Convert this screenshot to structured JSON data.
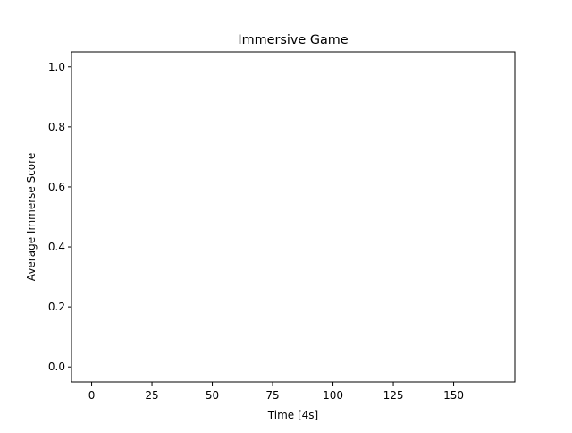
{
  "chart_data": {
    "type": "line",
    "title": "Immersive Game",
    "xlabel": "Time [4s]",
    "ylabel": "Average Immerse Score",
    "xlim": [
      -8.35,
      175.35
    ],
    "ylim": [
      -0.05,
      1.05
    ],
    "x_ticks": [
      0,
      25,
      50,
      75,
      100,
      125,
      150
    ],
    "y_ticks": [
      0.0,
      0.2,
      0.4,
      0.6,
      0.8,
      1.0
    ],
    "x_tick_labels": [
      "0",
      "25",
      "50",
      "75",
      "100",
      "125",
      "150"
    ],
    "y_tick_labels": [
      "0.0",
      "0.2",
      "0.4",
      "0.6",
      "0.8",
      "1.0"
    ],
    "grid": false,
    "series": [
      {
        "x": [],
        "values": []
      }
    ]
  }
}
